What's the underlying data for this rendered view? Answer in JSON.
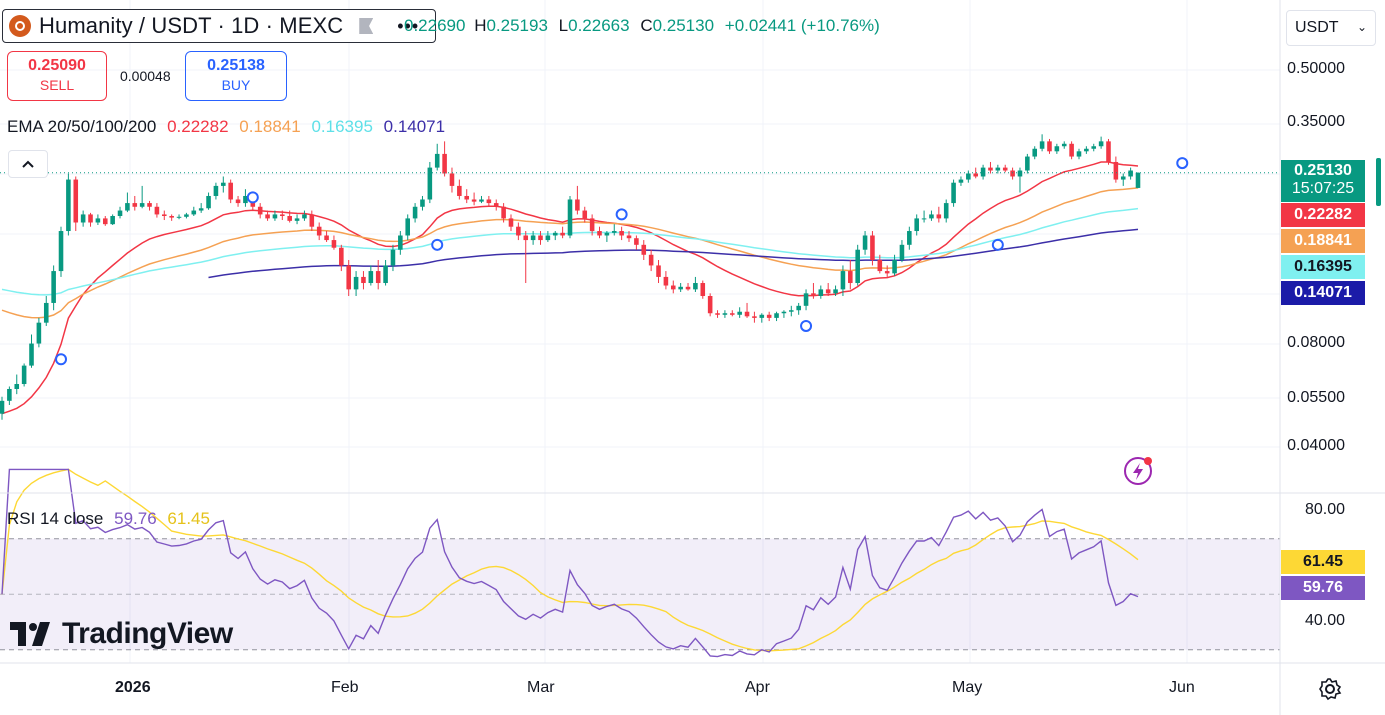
{
  "header": {
    "symbol_title": "Humanity / USDT · 1D · MEXC",
    "more_label": "•••",
    "open_label": "O",
    "open_value": "0.22690",
    "high_label": "H",
    "high_value": "0.25193",
    "low_label": "L",
    "low_value": "0.22663",
    "close_label": "C",
    "close_value": "0.25130",
    "change": "+0.02441 (+10.76%)"
  },
  "trade": {
    "sell_price": "0.25090",
    "sell_label": "SELL",
    "spread": "0.00048",
    "buy_price": "0.25138",
    "buy_label": "BUY"
  },
  "currency": {
    "selected": "USDT"
  },
  "ema_legend": {
    "label": "EMA 20/50/100/200",
    "ema20": "0.22282",
    "ema50": "0.18841",
    "ema100": "0.16395",
    "ema200": "0.14071"
  },
  "rsi_legend": {
    "label": "RSI 14 close",
    "rsi": "59.76",
    "ma": "61.45"
  },
  "brand": {
    "logo_text": "TradingView"
  },
  "colors": {
    "up": "#089981",
    "down": "#f23645",
    "ema20": "#f23645",
    "ema50": "#f5a153",
    "ema100": "#7ff0f0",
    "ema200": "#3c2fa8",
    "rsi": "#7e57c2",
    "rsi_ma": "#fdd835"
  },
  "chart_data": {
    "type": "candlestick",
    "title": "Humanity / USDT · 1D · MEXC",
    "y_scale": "log",
    "y_ticks": [
      "0.50000",
      "0.35000",
      "0.08000",
      "0.05500",
      "0.04000"
    ],
    "x_ticks": [
      "2026",
      "Feb",
      "Mar",
      "Apr",
      "May",
      "Jun"
    ],
    "last_price": "0.25130",
    "countdown": "15:07:25",
    "candles": [
      {
        "o": 0.05,
        "h": 0.056,
        "l": 0.048,
        "c": 0.0545
      },
      {
        "o": 0.0545,
        "h": 0.06,
        "l": 0.053,
        "c": 0.059
      },
      {
        "o": 0.059,
        "h": 0.065,
        "l": 0.057,
        "c": 0.061
      },
      {
        "o": 0.061,
        "h": 0.07,
        "l": 0.06,
        "c": 0.069
      },
      {
        "o": 0.069,
        "h": 0.085,
        "l": 0.068,
        "c": 0.08
      },
      {
        "o": 0.08,
        "h": 0.095,
        "l": 0.078,
        "c": 0.092
      },
      {
        "o": 0.092,
        "h": 0.11,
        "l": 0.09,
        "c": 0.105
      },
      {
        "o": 0.105,
        "h": 0.135,
        "l": 0.1,
        "c": 0.13
      },
      {
        "o": 0.13,
        "h": 0.175,
        "l": 0.125,
        "c": 0.17
      },
      {
        "o": 0.17,
        "h": 0.25,
        "l": 0.165,
        "c": 0.24
      },
      {
        "o": 0.24,
        "h": 0.245,
        "l": 0.17,
        "c": 0.18
      },
      {
        "o": 0.18,
        "h": 0.195,
        "l": 0.175,
        "c": 0.19
      },
      {
        "o": 0.19,
        "h": 0.192,
        "l": 0.175,
        "c": 0.18
      },
      {
        "o": 0.18,
        "h": 0.19,
        "l": 0.177,
        "c": 0.185
      },
      {
        "o": 0.185,
        "h": 0.188,
        "l": 0.176,
        "c": 0.178
      },
      {
        "o": 0.178,
        "h": 0.19,
        "l": 0.177,
        "c": 0.188
      },
      {
        "o": 0.188,
        "h": 0.2,
        "l": 0.185,
        "c": 0.195
      },
      {
        "o": 0.195,
        "h": 0.22,
        "l": 0.193,
        "c": 0.205
      },
      {
        "o": 0.205,
        "h": 0.215,
        "l": 0.195,
        "c": 0.2
      },
      {
        "o": 0.2,
        "h": 0.23,
        "l": 0.198,
        "c": 0.205
      },
      {
        "o": 0.205,
        "h": 0.208,
        "l": 0.195,
        "c": 0.2
      },
      {
        "o": 0.2,
        "h": 0.205,
        "l": 0.186,
        "c": 0.19
      },
      {
        "o": 0.19,
        "h": 0.195,
        "l": 0.183,
        "c": 0.188
      },
      {
        "o": 0.188,
        "h": 0.19,
        "l": 0.182,
        "c": 0.186
      },
      {
        "o": 0.186,
        "h": 0.19,
        "l": 0.184,
        "c": 0.187
      },
      {
        "o": 0.187,
        "h": 0.192,
        "l": 0.185,
        "c": 0.19
      },
      {
        "o": 0.19,
        "h": 0.2,
        "l": 0.188,
        "c": 0.195
      },
      {
        "o": 0.195,
        "h": 0.205,
        "l": 0.192,
        "c": 0.198
      },
      {
        "o": 0.198,
        "h": 0.22,
        "l": 0.196,
        "c": 0.215
      },
      {
        "o": 0.215,
        "h": 0.235,
        "l": 0.21,
        "c": 0.23
      },
      {
        "o": 0.23,
        "h": 0.245,
        "l": 0.22,
        "c": 0.235
      },
      {
        "o": 0.235,
        "h": 0.24,
        "l": 0.205,
        "c": 0.21
      },
      {
        "o": 0.21,
        "h": 0.215,
        "l": 0.2,
        "c": 0.205
      },
      {
        "o": 0.205,
        "h": 0.225,
        "l": 0.2,
        "c": 0.215
      },
      {
        "o": 0.215,
        "h": 0.22,
        "l": 0.195,
        "c": 0.2
      },
      {
        "o": 0.2,
        "h": 0.205,
        "l": 0.185,
        "c": 0.19
      },
      {
        "o": 0.19,
        "h": 0.195,
        "l": 0.182,
        "c": 0.185
      },
      {
        "o": 0.185,
        "h": 0.195,
        "l": 0.182,
        "c": 0.19
      },
      {
        "o": 0.19,
        "h": 0.195,
        "l": 0.183,
        "c": 0.188
      },
      {
        "o": 0.188,
        "h": 0.195,
        "l": 0.18,
        "c": 0.182
      },
      {
        "o": 0.182,
        "h": 0.19,
        "l": 0.178,
        "c": 0.185
      },
      {
        "o": 0.185,
        "h": 0.195,
        "l": 0.182,
        "c": 0.19
      },
      {
        "o": 0.19,
        "h": 0.195,
        "l": 0.17,
        "c": 0.175
      },
      {
        "o": 0.175,
        "h": 0.18,
        "l": 0.16,
        "c": 0.165
      },
      {
        "o": 0.165,
        "h": 0.17,
        "l": 0.158,
        "c": 0.16
      },
      {
        "o": 0.16,
        "h": 0.165,
        "l": 0.15,
        "c": 0.152
      },
      {
        "o": 0.152,
        "h": 0.155,
        "l": 0.13,
        "c": 0.135
      },
      {
        "o": 0.135,
        "h": 0.14,
        "l": 0.11,
        "c": 0.115
      },
      {
        "o": 0.115,
        "h": 0.13,
        "l": 0.11,
        "c": 0.125
      },
      {
        "o": 0.125,
        "h": 0.13,
        "l": 0.115,
        "c": 0.12
      },
      {
        "o": 0.12,
        "h": 0.135,
        "l": 0.118,
        "c": 0.13
      },
      {
        "o": 0.13,
        "h": 0.14,
        "l": 0.115,
        "c": 0.12
      },
      {
        "o": 0.12,
        "h": 0.14,
        "l": 0.118,
        "c": 0.135
      },
      {
        "o": 0.135,
        "h": 0.155,
        "l": 0.13,
        "c": 0.15
      },
      {
        "o": 0.15,
        "h": 0.17,
        "l": 0.145,
        "c": 0.165
      },
      {
        "o": 0.165,
        "h": 0.19,
        "l": 0.16,
        "c": 0.185
      },
      {
        "o": 0.185,
        "h": 0.205,
        "l": 0.18,
        "c": 0.2
      },
      {
        "o": 0.2,
        "h": 0.215,
        "l": 0.195,
        "c": 0.21
      },
      {
        "o": 0.21,
        "h": 0.27,
        "l": 0.205,
        "c": 0.26
      },
      {
        "o": 0.26,
        "h": 0.305,
        "l": 0.255,
        "c": 0.285
      },
      {
        "o": 0.285,
        "h": 0.31,
        "l": 0.245,
        "c": 0.25
      },
      {
        "o": 0.25,
        "h": 0.26,
        "l": 0.22,
        "c": 0.23
      },
      {
        "o": 0.23,
        "h": 0.24,
        "l": 0.21,
        "c": 0.215
      },
      {
        "o": 0.215,
        "h": 0.225,
        "l": 0.205,
        "c": 0.21
      },
      {
        "o": 0.21,
        "h": 0.22,
        "l": 0.202,
        "c": 0.207
      },
      {
        "o": 0.207,
        "h": 0.215,
        "l": 0.205,
        "c": 0.21
      },
      {
        "o": 0.21,
        "h": 0.215,
        "l": 0.2,
        "c": 0.205
      },
      {
        "o": 0.205,
        "h": 0.21,
        "l": 0.195,
        "c": 0.2
      },
      {
        "o": 0.2,
        "h": 0.205,
        "l": 0.18,
        "c": 0.185
      },
      {
        "o": 0.185,
        "h": 0.19,
        "l": 0.17,
        "c": 0.175
      },
      {
        "o": 0.175,
        "h": 0.18,
        "l": 0.16,
        "c": 0.165
      },
      {
        "o": 0.165,
        "h": 0.17,
        "l": 0.12,
        "c": 0.16
      },
      {
        "o": 0.16,
        "h": 0.17,
        "l": 0.155,
        "c": 0.165
      },
      {
        "o": 0.165,
        "h": 0.17,
        "l": 0.155,
        "c": 0.16
      },
      {
        "o": 0.16,
        "h": 0.17,
        "l": 0.158,
        "c": 0.165
      },
      {
        "o": 0.165,
        "h": 0.17,
        "l": 0.16,
        "c": 0.168
      },
      {
        "o": 0.168,
        "h": 0.175,
        "l": 0.162,
        "c": 0.165
      },
      {
        "o": 0.165,
        "h": 0.215,
        "l": 0.162,
        "c": 0.21
      },
      {
        "o": 0.21,
        "h": 0.23,
        "l": 0.19,
        "c": 0.195
      },
      {
        "o": 0.195,
        "h": 0.2,
        "l": 0.18,
        "c": 0.185
      },
      {
        "o": 0.185,
        "h": 0.19,
        "l": 0.165,
        "c": 0.17
      },
      {
        "o": 0.17,
        "h": 0.175,
        "l": 0.162,
        "c": 0.165
      },
      {
        "o": 0.165,
        "h": 0.17,
        "l": 0.158,
        "c": 0.168
      },
      {
        "o": 0.168,
        "h": 0.178,
        "l": 0.165,
        "c": 0.17
      },
      {
        "o": 0.17,
        "h": 0.175,
        "l": 0.16,
        "c": 0.165
      },
      {
        "o": 0.165,
        "h": 0.17,
        "l": 0.158,
        "c": 0.162
      },
      {
        "o": 0.162,
        "h": 0.165,
        "l": 0.15,
        "c": 0.155
      },
      {
        "o": 0.155,
        "h": 0.16,
        "l": 0.14,
        "c": 0.145
      },
      {
        "o": 0.145,
        "h": 0.15,
        "l": 0.13,
        "c": 0.135
      },
      {
        "o": 0.135,
        "h": 0.14,
        "l": 0.12,
        "c": 0.125
      },
      {
        "o": 0.125,
        "h": 0.13,
        "l": 0.115,
        "c": 0.118
      },
      {
        "o": 0.118,
        "h": 0.122,
        "l": 0.112,
        "c": 0.115
      },
      {
        "o": 0.115,
        "h": 0.12,
        "l": 0.113,
        "c": 0.117
      },
      {
        "o": 0.117,
        "h": 0.12,
        "l": 0.114,
        "c": 0.115
      },
      {
        "o": 0.115,
        "h": 0.125,
        "l": 0.113,
        "c": 0.12
      },
      {
        "o": 0.12,
        "h": 0.122,
        "l": 0.108,
        "c": 0.11
      },
      {
        "o": 0.11,
        "h": 0.112,
        "l": 0.096,
        "c": 0.098
      },
      {
        "o": 0.098,
        "h": 0.1,
        "l": 0.095,
        "c": 0.097
      },
      {
        "o": 0.097,
        "h": 0.1,
        "l": 0.095,
        "c": 0.098
      },
      {
        "o": 0.098,
        "h": 0.1,
        "l": 0.096,
        "c": 0.097
      },
      {
        "o": 0.097,
        "h": 0.102,
        "l": 0.095,
        "c": 0.099
      },
      {
        "o": 0.099,
        "h": 0.105,
        "l": 0.095,
        "c": 0.096
      },
      {
        "o": 0.096,
        "h": 0.099,
        "l": 0.092,
        "c": 0.095
      },
      {
        "o": 0.095,
        "h": 0.098,
        "l": 0.092,
        "c": 0.097
      },
      {
        "o": 0.097,
        "h": 0.099,
        "l": 0.093,
        "c": 0.095
      },
      {
        "o": 0.095,
        "h": 0.099,
        "l": 0.093,
        "c": 0.098
      },
      {
        "o": 0.098,
        "h": 0.1,
        "l": 0.095,
        "c": 0.099
      },
      {
        "o": 0.099,
        "h": 0.103,
        "l": 0.096,
        "c": 0.1
      },
      {
        "o": 0.1,
        "h": 0.105,
        "l": 0.097,
        "c": 0.103
      },
      {
        "o": 0.103,
        "h": 0.115,
        "l": 0.1,
        "c": 0.112
      },
      {
        "o": 0.112,
        "h": 0.12,
        "l": 0.108,
        "c": 0.11
      },
      {
        "o": 0.11,
        "h": 0.118,
        "l": 0.108,
        "c": 0.115
      },
      {
        "o": 0.115,
        "h": 0.12,
        "l": 0.11,
        "c": 0.112
      },
      {
        "o": 0.112,
        "h": 0.118,
        "l": 0.11,
        "c": 0.115
      },
      {
        "o": 0.115,
        "h": 0.135,
        "l": 0.11,
        "c": 0.13
      },
      {
        "o": 0.13,
        "h": 0.14,
        "l": 0.115,
        "c": 0.12
      },
      {
        "o": 0.12,
        "h": 0.155,
        "l": 0.118,
        "c": 0.15
      },
      {
        "o": 0.15,
        "h": 0.17,
        "l": 0.145,
        "c": 0.165
      },
      {
        "o": 0.165,
        "h": 0.17,
        "l": 0.135,
        "c": 0.14
      },
      {
        "o": 0.14,
        "h": 0.145,
        "l": 0.128,
        "c": 0.13
      },
      {
        "o": 0.13,
        "h": 0.135,
        "l": 0.125,
        "c": 0.128
      },
      {
        "o": 0.128,
        "h": 0.145,
        "l": 0.126,
        "c": 0.14
      },
      {
        "o": 0.14,
        "h": 0.16,
        "l": 0.138,
        "c": 0.155
      },
      {
        "o": 0.155,
        "h": 0.175,
        "l": 0.15,
        "c": 0.17
      },
      {
        "o": 0.17,
        "h": 0.19,
        "l": 0.165,
        "c": 0.185
      },
      {
        "o": 0.185,
        "h": 0.195,
        "l": 0.18,
        "c": 0.185
      },
      {
        "o": 0.185,
        "h": 0.195,
        "l": 0.182,
        "c": 0.19
      },
      {
        "o": 0.19,
        "h": 0.2,
        "l": 0.18,
        "c": 0.185
      },
      {
        "o": 0.185,
        "h": 0.21,
        "l": 0.18,
        "c": 0.205
      },
      {
        "o": 0.205,
        "h": 0.24,
        "l": 0.2,
        "c": 0.235
      },
      {
        "o": 0.235,
        "h": 0.245,
        "l": 0.23,
        "c": 0.24
      },
      {
        "o": 0.24,
        "h": 0.255,
        "l": 0.235,
        "c": 0.25
      },
      {
        "o": 0.25,
        "h": 0.26,
        "l": 0.242,
        "c": 0.245
      },
      {
        "o": 0.245,
        "h": 0.265,
        "l": 0.24,
        "c": 0.26
      },
      {
        "o": 0.26,
        "h": 0.27,
        "l": 0.25,
        "c": 0.255
      },
      {
        "o": 0.255,
        "h": 0.265,
        "l": 0.25,
        "c": 0.26
      },
      {
        "o": 0.26,
        "h": 0.265,
        "l": 0.252,
        "c": 0.255
      },
      {
        "o": 0.255,
        "h": 0.26,
        "l": 0.24,
        "c": 0.245
      },
      {
        "o": 0.245,
        "h": 0.26,
        "l": 0.22,
        "c": 0.255
      },
      {
        "o": 0.255,
        "h": 0.285,
        "l": 0.25,
        "c": 0.28
      },
      {
        "o": 0.28,
        "h": 0.3,
        "l": 0.275,
        "c": 0.295
      },
      {
        "o": 0.295,
        "h": 0.325,
        "l": 0.29,
        "c": 0.31
      },
      {
        "o": 0.31,
        "h": 0.315,
        "l": 0.285,
        "c": 0.29
      },
      {
        "o": 0.29,
        "h": 0.305,
        "l": 0.285,
        "c": 0.3
      },
      {
        "o": 0.3,
        "h": 0.31,
        "l": 0.295,
        "c": 0.305
      },
      {
        "o": 0.305,
        "h": 0.31,
        "l": 0.275,
        "c": 0.28
      },
      {
        "o": 0.28,
        "h": 0.295,
        "l": 0.275,
        "c": 0.29
      },
      {
        "o": 0.29,
        "h": 0.3,
        "l": 0.285,
        "c": 0.295
      },
      {
        "o": 0.295,
        "h": 0.305,
        "l": 0.29,
        "c": 0.3
      },
      {
        "o": 0.3,
        "h": 0.32,
        "l": 0.295,
        "c": 0.31
      },
      {
        "o": 0.31,
        "h": 0.315,
        "l": 0.265,
        "c": 0.27
      },
      {
        "o": 0.27,
        "h": 0.28,
        "l": 0.235,
        "c": 0.24
      },
      {
        "o": 0.24,
        "h": 0.25,
        "l": 0.23,
        "c": 0.245
      },
      {
        "o": 0.245,
        "h": 0.26,
        "l": 0.24,
        "c": 0.255
      },
      {
        "o": 0.2269,
        "h": 0.25193,
        "l": 0.22663,
        "c": 0.2513
      }
    ],
    "series": [
      {
        "name": "EMA 20",
        "last": 0.22282
      },
      {
        "name": "EMA 50",
        "last": 0.18841
      },
      {
        "name": "EMA 100",
        "last": 0.16395
      },
      {
        "name": "EMA 200",
        "last": 0.14071
      }
    ],
    "rsi": {
      "name": "RSI 14 close",
      "y_ticks": [
        "80.00",
        "40.00"
      ],
      "bands": [
        70,
        30,
        50
      ],
      "last": 59.76,
      "ma_last": 61.45
    }
  }
}
